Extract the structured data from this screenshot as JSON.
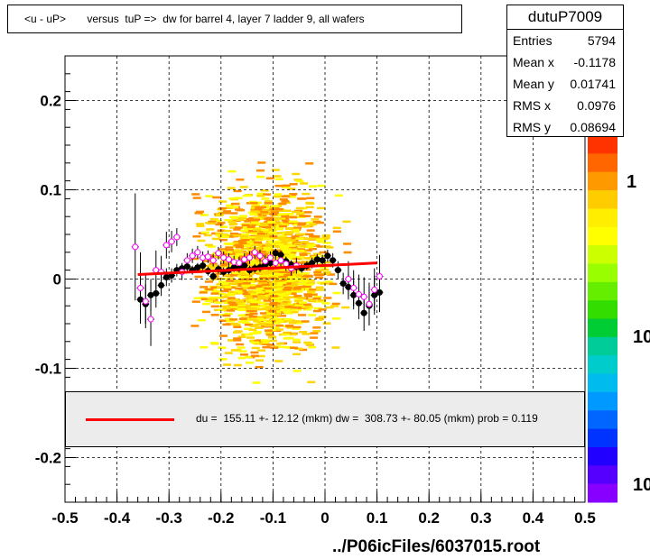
{
  "title": "<u - uP>       versus  tuP =>  dw for barrel 4, layer 7 ladder 9, all wafers",
  "stats": {
    "name": "dutuP7009",
    "rows": [
      {
        "key": "Entries",
        "value": "5794"
      },
      {
        "key": "Mean x",
        "value": "-0.1178"
      },
      {
        "key": "Mean y",
        "value": "0.01741"
      },
      {
        "key": "RMS x",
        "value": "0.0976"
      },
      {
        "key": "RMS y",
        "value": "0.08694"
      }
    ]
  },
  "fit_text": "du =  155.11 +- 12.12 (mkm) dw =  308.73 +- 80.05 (mkm) prob = 0.119",
  "footer": "../P06icFiles/6037015.root",
  "colors": {
    "fit": "#ff0000",
    "profile": "#000000",
    "open_markers": "#ff00ff",
    "scatter": "#ffff00"
  },
  "palette_labels": [
    "1",
    "10",
    "10"
  ],
  "chart_data": {
    "type": "scatter",
    "xlim": [
      -0.5,
      0.5
    ],
    "ylim": [
      -0.25,
      0.25
    ],
    "x_ticks": [
      "-0.5",
      "-0.4",
      "-0.3",
      "-0.2",
      "-0.1",
      "0",
      "0.1",
      "0.2",
      "0.3",
      "0.4",
      "0.5"
    ],
    "y_ticks": [
      "-0.2",
      "-0.1",
      "0",
      "0.1",
      "0.2"
    ],
    "y_tick_values": [
      -0.2,
      -0.1,
      0,
      0.1,
      0.2
    ],
    "grid": true,
    "fit_line": {
      "x": [
        -0.36,
        0.1
      ],
      "y": [
        0.005,
        0.018
      ]
    },
    "series": [
      {
        "marker": "filled-circle",
        "x": [
          -0.355,
          -0.345,
          -0.335,
          -0.325,
          -0.315,
          -0.305,
          -0.295,
          -0.285,
          -0.275,
          -0.265,
          -0.255,
          -0.245,
          -0.235,
          -0.225,
          -0.215,
          -0.205,
          -0.195,
          -0.185,
          -0.175,
          -0.165,
          -0.155,
          -0.145,
          -0.135,
          -0.125,
          -0.115,
          -0.105,
          -0.095,
          -0.085,
          -0.075,
          -0.065,
          -0.055,
          -0.045,
          -0.035,
          -0.025,
          -0.015,
          -0.005,
          0.005,
          0.015,
          0.025,
          0.035,
          0.045,
          0.055,
          0.065,
          0.075,
          0.085,
          0.095,
          0.105
        ],
        "y": [
          -0.023,
          -0.028,
          -0.018,
          -0.016,
          -0.007,
          0.002,
          0.004,
          0.01,
          0.012,
          0.014,
          0.01,
          0.013,
          0.015,
          0.009,
          0.003,
          0.011,
          0.008,
          0.01,
          0.013,
          0.012,
          0.015,
          0.01,
          0.012,
          0.013,
          0.016,
          0.018,
          0.029,
          0.027,
          0.02,
          0.016,
          0.014,
          0.012,
          0.015,
          0.018,
          0.022,
          0.021,
          0.026,
          0.021,
          0.01,
          -0.005,
          -0.009,
          -0.018,
          -0.027,
          -0.038,
          -0.03,
          -0.018,
          -0.015
        ],
        "err": [
          0.022,
          0.022,
          0.018,
          0.016,
          0.012,
          0.01,
          0.008,
          0.007,
          0.006,
          0.006,
          0.005,
          0.005,
          0.005,
          0.005,
          0.005,
          0.005,
          0.005,
          0.005,
          0.005,
          0.005,
          0.005,
          0.005,
          0.005,
          0.005,
          0.005,
          0.005,
          0.005,
          0.005,
          0.005,
          0.005,
          0.005,
          0.005,
          0.005,
          0.006,
          0.006,
          0.006,
          0.007,
          0.008,
          0.01,
          0.012,
          0.014,
          0.016,
          0.018,
          0.02,
          0.022,
          0.022,
          0.022
        ]
      },
      {
        "marker": "open-circle",
        "x": [
          -0.365,
          -0.355,
          -0.345,
          -0.335,
          -0.325,
          -0.315,
          -0.305,
          -0.295,
          -0.285,
          -0.275,
          -0.265,
          -0.255,
          -0.245,
          -0.235,
          -0.225,
          -0.215,
          -0.205,
          -0.195,
          -0.185,
          -0.175,
          -0.165,
          -0.155,
          -0.145,
          -0.135,
          -0.125,
          -0.115,
          -0.105,
          -0.095,
          -0.085,
          -0.075,
          -0.065,
          -0.055,
          0.045,
          0.055,
          0.065,
          0.075,
          0.085,
          0.095,
          0.105
        ],
        "y": [
          0.036,
          -0.01,
          -0.025,
          -0.045,
          0.01,
          0.008,
          0.038,
          0.042,
          0.047,
          0.008,
          0.021,
          0.026,
          0.03,
          0.024,
          0.025,
          0.021,
          0.029,
          0.024,
          0.022,
          0.019,
          0.018,
          0.022,
          0.024,
          0.03,
          0.026,
          0.02,
          0.024,
          0.018,
          0.021,
          0.017,
          0.012,
          0.015,
          0.0,
          -0.01,
          -0.017,
          -0.02,
          -0.028,
          -0.012,
          0.003
        ],
        "err": [
          0.06,
          0.04,
          0.03,
          0.03,
          0.022,
          0.018,
          0.015,
          0.012,
          0.01,
          0.009,
          0.008,
          0.008,
          0.007,
          0.007,
          0.007,
          0.007,
          0.007,
          0.007,
          0.007,
          0.007,
          0.007,
          0.007,
          0.007,
          0.007,
          0.007,
          0.007,
          0.007,
          0.007,
          0.008,
          0.008,
          0.008,
          0.009,
          0.02,
          0.02,
          0.022,
          0.022,
          0.024,
          0.024,
          0.024
        ]
      }
    ]
  }
}
